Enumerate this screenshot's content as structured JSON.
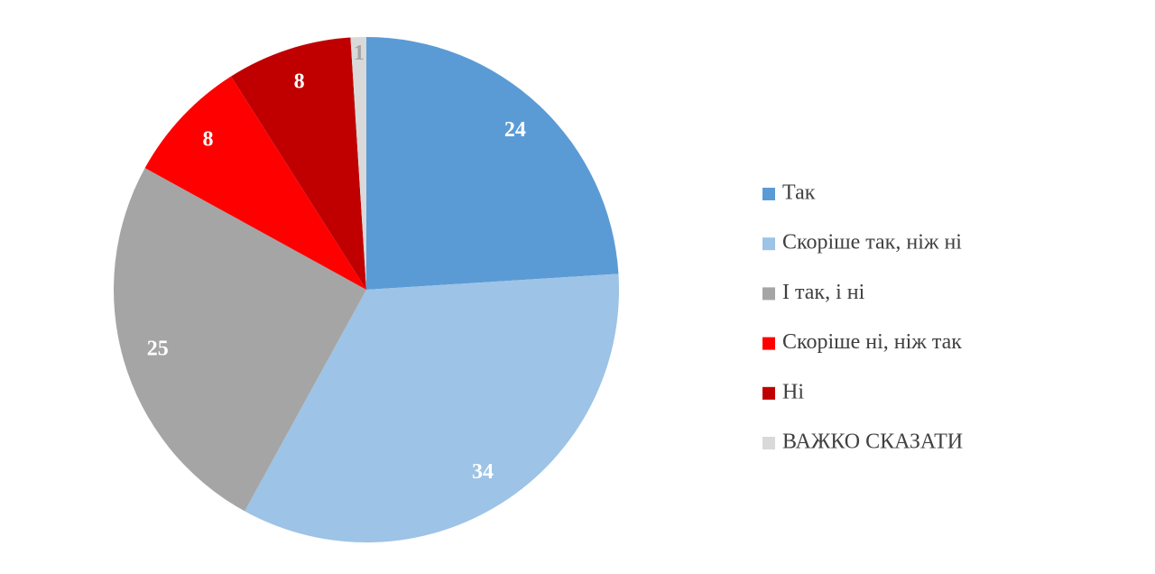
{
  "chart_data": {
    "type": "pie",
    "categories": [
      "Так",
      "Скоріше так, ніж ні",
      "І так, і ні",
      "Скоріше ні, ніж так",
      "Ні",
      "ВАЖКО СКАЗАТИ"
    ],
    "values": [
      24,
      34,
      25,
      8,
      8,
      1
    ],
    "colors": [
      "#5b9bd5",
      "#9dc3e6",
      "#a5a5a5",
      "#ff0000",
      "#c00000",
      "#d9d9d9"
    ],
    "legend": "right"
  }
}
